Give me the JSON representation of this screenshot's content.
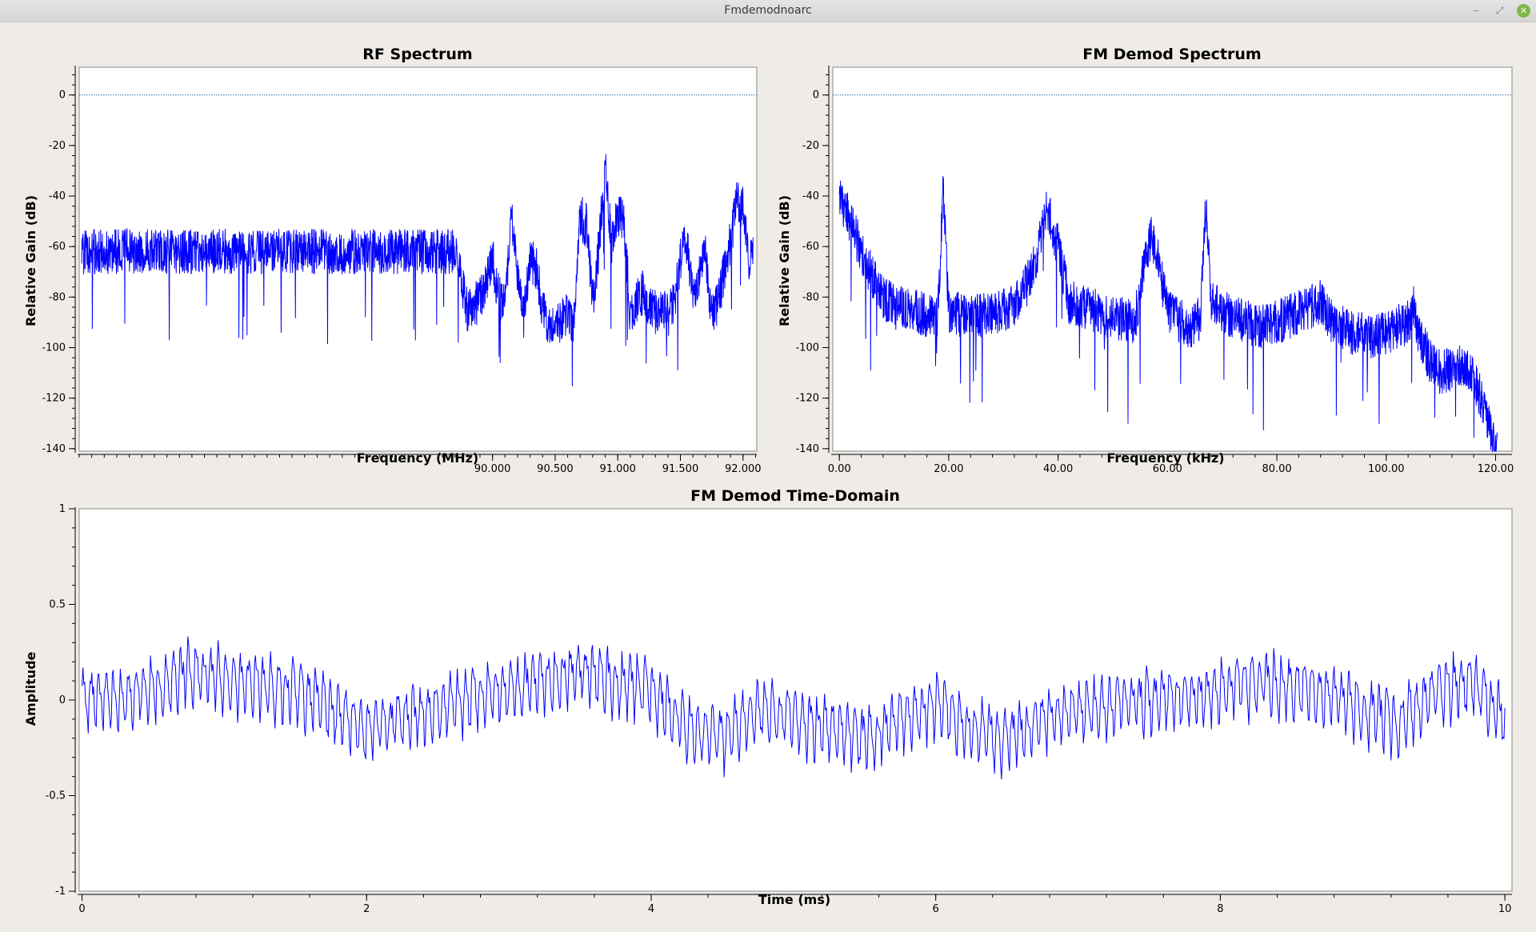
{
  "window": {
    "title": "Fmdemodnoarc",
    "controls": {
      "minimize": "–",
      "maximize": "⤢",
      "close": "✕"
    }
  },
  "colors": {
    "trace": "#0000ff",
    "reference": "#1f6fa0",
    "background": "#efebe7",
    "canvas": "#ffffff"
  },
  "chart_data": [
    {
      "id": "rf",
      "type": "line",
      "title": "RF Spectrum",
      "xlabel": "Frequency (MHz)",
      "ylabel": "Relative Gain (dB)",
      "xlim": [
        86.7,
        92.11
      ],
      "ylim": [
        -141,
        11
      ],
      "xticks": [
        90.0,
        90.5,
        91.0,
        91.5,
        92.0
      ],
      "xtick_labels": [
        "90.000",
        "90.500",
        "91.000",
        "91.500",
        "92.000"
      ],
      "yticks": [
        0,
        -20,
        -40,
        -60,
        -80,
        -100,
        -120,
        -140
      ],
      "ytick_labels": [
        "0",
        "-20",
        "-40",
        "-60",
        "-80",
        "-100",
        "-120",
        "-140"
      ],
      "reference_line": 0,
      "grid": false,
      "series": [
        {
          "x": [
            89.7,
            89.75,
            89.8,
            89.85,
            89.9,
            89.95,
            90.0,
            90.05,
            90.1,
            90.15,
            90.2,
            90.25,
            90.3,
            90.35,
            90.4,
            90.45,
            90.5,
            90.55,
            90.6,
            90.65,
            90.7,
            90.75,
            90.8,
            90.85,
            90.88,
            90.9,
            90.92,
            90.95,
            91.0,
            91.05,
            91.1,
            91.15,
            91.2,
            91.25,
            91.3,
            91.35,
            91.4,
            91.45,
            91.5,
            91.55,
            91.6,
            91.65,
            91.7,
            91.75,
            91.8,
            91.85,
            91.9,
            91.95,
            92.0,
            92.05,
            92.1
          ],
          "y": [
            -62,
            -72,
            -85,
            -84,
            -80,
            -74,
            -65,
            -80,
            -82,
            -48,
            -70,
            -88,
            -65,
            -68,
            -85,
            -90,
            -88,
            -90,
            -86,
            -90,
            -48,
            -52,
            -82,
            -60,
            -40,
            -28,
            -42,
            -58,
            -48,
            -50,
            -88,
            -82,
            -78,
            -85,
            -86,
            -84,
            -88,
            -82,
            -65,
            -58,
            -80,
            -72,
            -62,
            -88,
            -82,
            -70,
            -58,
            -42,
            -45,
            -68,
            -58
          ]
        }
      ]
    },
    {
      "id": "demod",
      "type": "line",
      "title": "FM Demod Spectrum",
      "xlabel": "Frequency (kHz)",
      "ylabel": "Relative Gain (dB)",
      "xlim": [
        -1.2,
        123.0
      ],
      "ylim": [
        -141,
        11
      ],
      "xticks": [
        0,
        20,
        40,
        60,
        80,
        100,
        120
      ],
      "xtick_labels": [
        "0.00",
        "20.00",
        "40.00",
        "60.00",
        "80.00",
        "100.00",
        "120.00"
      ],
      "yticks": [
        0,
        -20,
        -40,
        -60,
        -80,
        -100,
        -120,
        -140
      ],
      "ytick_labels": [
        "0",
        "-20",
        "-40",
        "-60",
        "-80",
        "-100",
        "-120",
        "-140"
      ],
      "reference_line": 0,
      "grid": false,
      "series": [
        {
          "x": [
            0,
            2,
            4,
            6,
            8,
            10,
            14,
            18,
            19,
            20,
            24,
            28,
            32,
            35,
            37,
            38,
            40,
            42,
            46,
            50,
            54,
            56,
            57,
            58,
            60,
            64,
            66,
            67,
            68,
            70,
            74,
            78,
            82,
            86,
            88,
            90,
            94,
            98,
            102,
            104,
            105,
            106,
            108,
            110,
            112,
            114,
            116,
            118,
            120
          ],
          "y": [
            -40,
            -50,
            -62,
            -72,
            -80,
            -84,
            -86,
            -88,
            -35,
            -86,
            -88,
            -86,
            -84,
            -72,
            -55,
            -45,
            -60,
            -82,
            -85,
            -88,
            -90,
            -65,
            -55,
            -62,
            -86,
            -92,
            -88,
            -45,
            -80,
            -86,
            -90,
            -92,
            -88,
            -84,
            -82,
            -90,
            -94,
            -96,
            -92,
            -90,
            -84,
            -95,
            -105,
            -110,
            -108,
            -106,
            -112,
            -125,
            -142
          ]
        }
      ]
    },
    {
      "id": "time",
      "type": "line",
      "title": "FM Demod Time-Domain",
      "xlabel": "Time (ms)",
      "ylabel": "Amplitude",
      "xlim": [
        -0.02,
        10.05
      ],
      "ylim": [
        -1,
        1
      ],
      "xticks": [
        0,
        2,
        4,
        6,
        8,
        10
      ],
      "xtick_labels": [
        "0",
        "2",
        "4",
        "6",
        "8",
        "10"
      ],
      "yticks": [
        1,
        0.5,
        0,
        -0.5,
        -1
      ],
      "ytick_labels": [
        "1",
        "0.5",
        "0",
        "-0.5",
        "-1"
      ],
      "grid": false,
      "series": [
        {
          "x": [
            0,
            0.25,
            0.5,
            0.75,
            1.0,
            1.25,
            1.5,
            1.75,
            2.0,
            2.25,
            2.5,
            2.75,
            3.0,
            3.25,
            3.5,
            3.75,
            4.0,
            4.25,
            4.5,
            4.75,
            5.0,
            5.25,
            5.5,
            5.75,
            6.0,
            6.25,
            6.5,
            6.75,
            7.0,
            7.25,
            7.5,
            7.75,
            8.0,
            8.25,
            8.5,
            8.75,
            9.0,
            9.25,
            9.5,
            9.75,
            10.0
          ],
          "y": [
            0.0,
            0.02,
            0.06,
            0.15,
            0.12,
            0.08,
            0.05,
            -0.05,
            -0.15,
            -0.1,
            -0.05,
            0.02,
            0.05,
            0.1,
            0.15,
            0.1,
            0.05,
            -0.15,
            -0.2,
            -0.05,
            -0.1,
            -0.15,
            -0.2,
            -0.1,
            -0.02,
            -0.15,
            -0.2,
            -0.1,
            -0.05,
            -0.02,
            0.0,
            0.02,
            0.05,
            0.1,
            0.08,
            0.02,
            -0.05,
            -0.12,
            0.05,
            0.1,
            -0.1
          ],
          "amplitude": 0.13
        }
      ]
    }
  ]
}
